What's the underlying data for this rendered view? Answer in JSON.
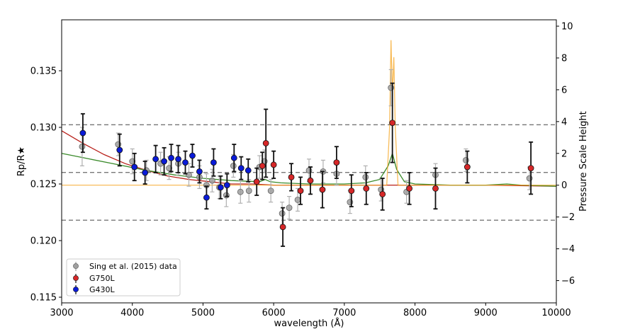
{
  "chart_data": {
    "type": "scatter",
    "xlabel": "wavelength (Å)",
    "ylabel": "Rp/R★",
    "y2label": "Pressure Scale Height",
    "xlim": [
      3000,
      10000
    ],
    "ylim": [
      0.1145,
      0.1395
    ],
    "y2lim": [
      -7.4,
      10.4
    ],
    "x_ticks": [
      3000,
      4000,
      5000,
      6000,
      7000,
      8000,
      9000,
      10000
    ],
    "y_ticks": [
      0.115,
      0.12,
      0.125,
      0.13,
      0.135
    ],
    "y_tick_labels": [
      "0.115",
      "0.120",
      "0.125",
      "0.130",
      "0.135"
    ],
    "y2_ticks": [
      -6,
      -4,
      -2,
      0,
      2,
      4,
      6,
      8,
      10
    ],
    "y2_tick_labels": [
      "−6",
      "−4",
      "−2",
      "0",
      "2",
      "4",
      "6",
      "8",
      "10"
    ],
    "hlines_scale_height": [
      3.8,
      0.8,
      -2.2
    ],
    "series": [
      {
        "name": "Sing et al. (2015) data",
        "color": "#a0a0a0",
        "points": [
          {
            "x": 3290,
            "y": 0.1283,
            "err": 0.0017
          },
          {
            "x": 3800,
            "y": 0.1285,
            "err": 0.001
          },
          {
            "x": 4000,
            "y": 0.127,
            "err": 0.0011
          },
          {
            "x": 4200,
            "y": 0.1262,
            "err": 0.0009
          },
          {
            "x": 4400,
            "y": 0.1268,
            "err": 0.001
          },
          {
            "x": 4520,
            "y": 0.1264,
            "err": 0.001
          },
          {
            "x": 4650,
            "y": 0.1268,
            "err": 0.001
          },
          {
            "x": 4800,
            "y": 0.1258,
            "err": 0.001
          },
          {
            "x": 4950,
            "y": 0.1256,
            "err": 0.001
          },
          {
            "x": 5050,
            "y": 0.1249,
            "err": 0.001
          },
          {
            "x": 5130,
            "y": 0.1253,
            "err": 0.001
          },
          {
            "x": 5230,
            "y": 0.1247,
            "err": 0.001
          },
          {
            "x": 5330,
            "y": 0.124,
            "err": 0.001
          },
          {
            "x": 5430,
            "y": 0.1266,
            "err": 0.001
          },
          {
            "x": 5530,
            "y": 0.1243,
            "err": 0.001
          },
          {
            "x": 5650,
            "y": 0.1244,
            "err": 0.001
          },
          {
            "x": 5800,
            "y": 0.1265,
            "err": 0.001
          },
          {
            "x": 5870,
            "y": 0.127,
            "err": 0.001
          },
          {
            "x": 5960,
            "y": 0.1244,
            "err": 0.001
          },
          {
            "x": 6120,
            "y": 0.1224,
            "err": 0.001
          },
          {
            "x": 6220,
            "y": 0.1229,
            "err": 0.001
          },
          {
            "x": 6340,
            "y": 0.1236,
            "err": 0.001
          },
          {
            "x": 6500,
            "y": 0.1262,
            "err": 0.001
          },
          {
            "x": 6700,
            "y": 0.1261,
            "err": 0.001
          },
          {
            "x": 6890,
            "y": 0.1259,
            "err": 0.001
          },
          {
            "x": 7080,
            "y": 0.1234,
            "err": 0.001
          },
          {
            "x": 7300,
            "y": 0.1256,
            "err": 0.001
          },
          {
            "x": 7520,
            "y": 0.1245,
            "err": 0.001
          },
          {
            "x": 7660,
            "y": 0.1335,
            "err": 0.0016
          },
          {
            "x": 7880,
            "y": 0.1243,
            "err": 0.001
          },
          {
            "x": 8290,
            "y": 0.1258,
            "err": 0.001
          },
          {
            "x": 8720,
            "y": 0.1271,
            "err": 0.001
          },
          {
            "x": 9620,
            "y": 0.1255,
            "err": 0.001
          }
        ]
      },
      {
        "name": "G750L",
        "color": "#d62728",
        "points": [
          {
            "x": 5760,
            "y": 0.1252,
            "err": 0.0012
          },
          {
            "x": 5840,
            "y": 0.1266,
            "err": 0.0012
          },
          {
            "x": 5890,
            "y": 0.1286,
            "err": 0.003
          },
          {
            "x": 6000,
            "y": 0.1267,
            "err": 0.0012
          },
          {
            "x": 6130,
            "y": 0.1212,
            "err": 0.0017
          },
          {
            "x": 6250,
            "y": 0.1256,
            "err": 0.0012
          },
          {
            "x": 6380,
            "y": 0.1244,
            "err": 0.0012
          },
          {
            "x": 6520,
            "y": 0.1253,
            "err": 0.0012
          },
          {
            "x": 6690,
            "y": 0.1245,
            "err": 0.0016
          },
          {
            "x": 6890,
            "y": 0.1269,
            "err": 0.0014
          },
          {
            "x": 7100,
            "y": 0.1244,
            "err": 0.0014
          },
          {
            "x": 7310,
            "y": 0.1246,
            "err": 0.0014
          },
          {
            "x": 7540,
            "y": 0.1241,
            "err": 0.0014
          },
          {
            "x": 7680,
            "y": 0.1304,
            "err": 0.0035
          },
          {
            "x": 7920,
            "y": 0.1246,
            "err": 0.0014
          },
          {
            "x": 8290,
            "y": 0.1246,
            "err": 0.0018
          },
          {
            "x": 8740,
            "y": 0.1265,
            "err": 0.0014
          },
          {
            "x": 9640,
            "y": 0.1264,
            "err": 0.0023
          }
        ]
      },
      {
        "name": "G430L",
        "color": "#0a1bd8",
        "points": [
          {
            "x": 3300,
            "y": 0.1295,
            "err": 0.0017
          },
          {
            "x": 3820,
            "y": 0.128,
            "err": 0.0014
          },
          {
            "x": 4030,
            "y": 0.1265,
            "err": 0.0012
          },
          {
            "x": 4180,
            "y": 0.126,
            "err": 0.001
          },
          {
            "x": 4330,
            "y": 0.1272,
            "err": 0.0012
          },
          {
            "x": 4450,
            "y": 0.127,
            "err": 0.0012
          },
          {
            "x": 4550,
            "y": 0.1273,
            "err": 0.0012
          },
          {
            "x": 4650,
            "y": 0.1272,
            "err": 0.0012
          },
          {
            "x": 4750,
            "y": 0.1269,
            "err": 0.001
          },
          {
            "x": 4850,
            "y": 0.1275,
            "err": 0.001
          },
          {
            "x": 4950,
            "y": 0.1261,
            "err": 0.001
          },
          {
            "x": 5050,
            "y": 0.1238,
            "err": 0.001
          },
          {
            "x": 5150,
            "y": 0.1269,
            "err": 0.0012
          },
          {
            "x": 5250,
            "y": 0.1247,
            "err": 0.001
          },
          {
            "x": 5340,
            "y": 0.1249,
            "err": 0.001
          },
          {
            "x": 5440,
            "y": 0.1273,
            "err": 0.0012
          },
          {
            "x": 5540,
            "y": 0.1264,
            "err": 0.001
          },
          {
            "x": 5640,
            "y": 0.1262,
            "err": 0.001
          }
        ]
      }
    ],
    "models": [
      {
        "name": "red model",
        "color": "#b8201a",
        "x": [
          3000,
          3300,
          3600,
          3900,
          4200,
          4500,
          4800,
          5100,
          5400,
          5700,
          6000,
          6500,
          7000,
          7500,
          8000,
          9000,
          10000
        ],
        "y": [
          0.1297,
          0.1286,
          0.1276,
          0.1268,
          0.1262,
          0.1257,
          0.1254,
          0.1252,
          0.125,
          0.125,
          0.1249,
          0.1249,
          0.1249,
          0.1249,
          0.1249,
          0.1249,
          0.1248
        ]
      },
      {
        "name": "green model",
        "color": "#3a8a2a",
        "x": [
          3000,
          3400,
          3800,
          4200,
          4600,
          5000,
          5400,
          5800,
          5880,
          5950,
          6100,
          6500,
          7000,
          7300,
          7500,
          7620,
          7680,
          7740,
          7850,
          8000,
          8500,
          9000,
          9300,
          9500,
          10000
        ],
        "y": [
          0.1277,
          0.1272,
          0.1267,
          0.1262,
          0.1258,
          0.1255,
          0.1253,
          0.1252,
          0.1254,
          0.1252,
          0.1251,
          0.125,
          0.125,
          0.1251,
          0.1254,
          0.1266,
          0.1277,
          0.1263,
          0.1252,
          0.125,
          0.1249,
          0.1249,
          0.125,
          0.1249,
          0.1248
        ]
      },
      {
        "name": "orange spike",
        "color": "#f5a623",
        "x": [
          3000,
          7600,
          7640,
          7660,
          7680,
          7700,
          7720,
          7760,
          10000
        ],
        "y": [
          0.1249,
          0.1249,
          0.13,
          0.1377,
          0.133,
          0.1362,
          0.13,
          0.1249,
          0.1249
        ]
      }
    ],
    "legend_placement": "bottom-left"
  }
}
